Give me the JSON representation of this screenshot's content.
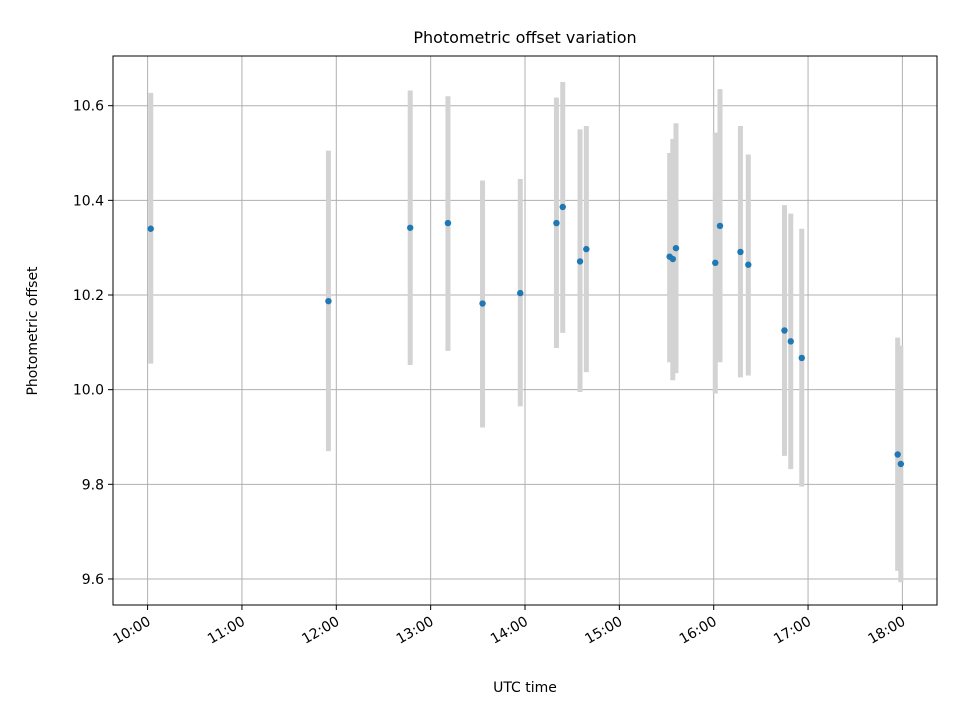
{
  "colors": {
    "point": "#1f77b4",
    "errorbar": "#d3d3d3",
    "grid": "#b0b0b0"
  },
  "chart_data": {
    "type": "scatter",
    "title": "Photometric offset variation",
    "xlabel": "UTC time",
    "ylabel": "Photometric offset",
    "grid": true,
    "x_unit": "UTC time (HH:MM)",
    "xlim": [
      "09:38",
      "18:22"
    ],
    "ylim": [
      9.545,
      10.705
    ],
    "x_ticks": [
      "10:00",
      "11:00",
      "12:00",
      "13:00",
      "14:00",
      "15:00",
      "16:00",
      "17:00",
      "18:00"
    ],
    "y_ticks": [
      "9.6",
      "9.8",
      "10.0",
      "10.2",
      "10.4",
      "10.6"
    ],
    "series": [
      {
        "points": [
          {
            "x": "10:02",
            "y": 10.34,
            "lo": 10.055,
            "hi": 10.627
          },
          {
            "x": "11:55",
            "y": 10.187,
            "lo": 9.87,
            "hi": 10.505
          },
          {
            "x": "12:47",
            "y": 10.342,
            "lo": 10.052,
            "hi": 10.632
          },
          {
            "x": "13:11",
            "y": 10.352,
            "lo": 10.082,
            "hi": 10.62
          },
          {
            "x": "13:33",
            "y": 10.182,
            "lo": 9.92,
            "hi": 10.442
          },
          {
            "x": "13:57",
            "y": 10.204,
            "lo": 9.965,
            "hi": 10.445
          },
          {
            "x": "14:20",
            "y": 10.352,
            "lo": 10.088,
            "hi": 10.617
          },
          {
            "x": "14:24",
            "y": 10.386,
            "lo": 10.12,
            "hi": 10.65
          },
          {
            "x": "14:35",
            "y": 10.271,
            "lo": 9.995,
            "hi": 10.55
          },
          {
            "x": "14:39",
            "y": 10.297,
            "lo": 10.037,
            "hi": 10.557
          },
          {
            "x": "15:32",
            "y": 10.281,
            "lo": 10.058,
            "hi": 10.5
          },
          {
            "x": "15:34",
            "y": 10.276,
            "lo": 10.02,
            "hi": 10.53
          },
          {
            "x": "15:36",
            "y": 10.299,
            "lo": 10.035,
            "hi": 10.563
          },
          {
            "x": "16:01",
            "y": 10.268,
            "lo": 9.992,
            "hi": 10.543
          },
          {
            "x": "16:04",
            "y": 10.346,
            "lo": 10.058,
            "hi": 10.635
          },
          {
            "x": "16:17",
            "y": 10.291,
            "lo": 10.026,
            "hi": 10.557
          },
          {
            "x": "16:22",
            "y": 10.264,
            "lo": 10.03,
            "hi": 10.497
          },
          {
            "x": "16:45",
            "y": 10.125,
            "lo": 9.86,
            "hi": 10.39
          },
          {
            "x": "16:49",
            "y": 10.102,
            "lo": 9.832,
            "hi": 10.372
          },
          {
            "x": "16:56",
            "y": 10.067,
            "lo": 9.795,
            "hi": 10.34
          },
          {
            "x": "17:57",
            "y": 9.863,
            "lo": 9.617,
            "hi": 10.11
          },
          {
            "x": "17:59",
            "y": 9.843,
            "lo": 9.593,
            "hi": 10.093
          }
        ]
      }
    ]
  }
}
